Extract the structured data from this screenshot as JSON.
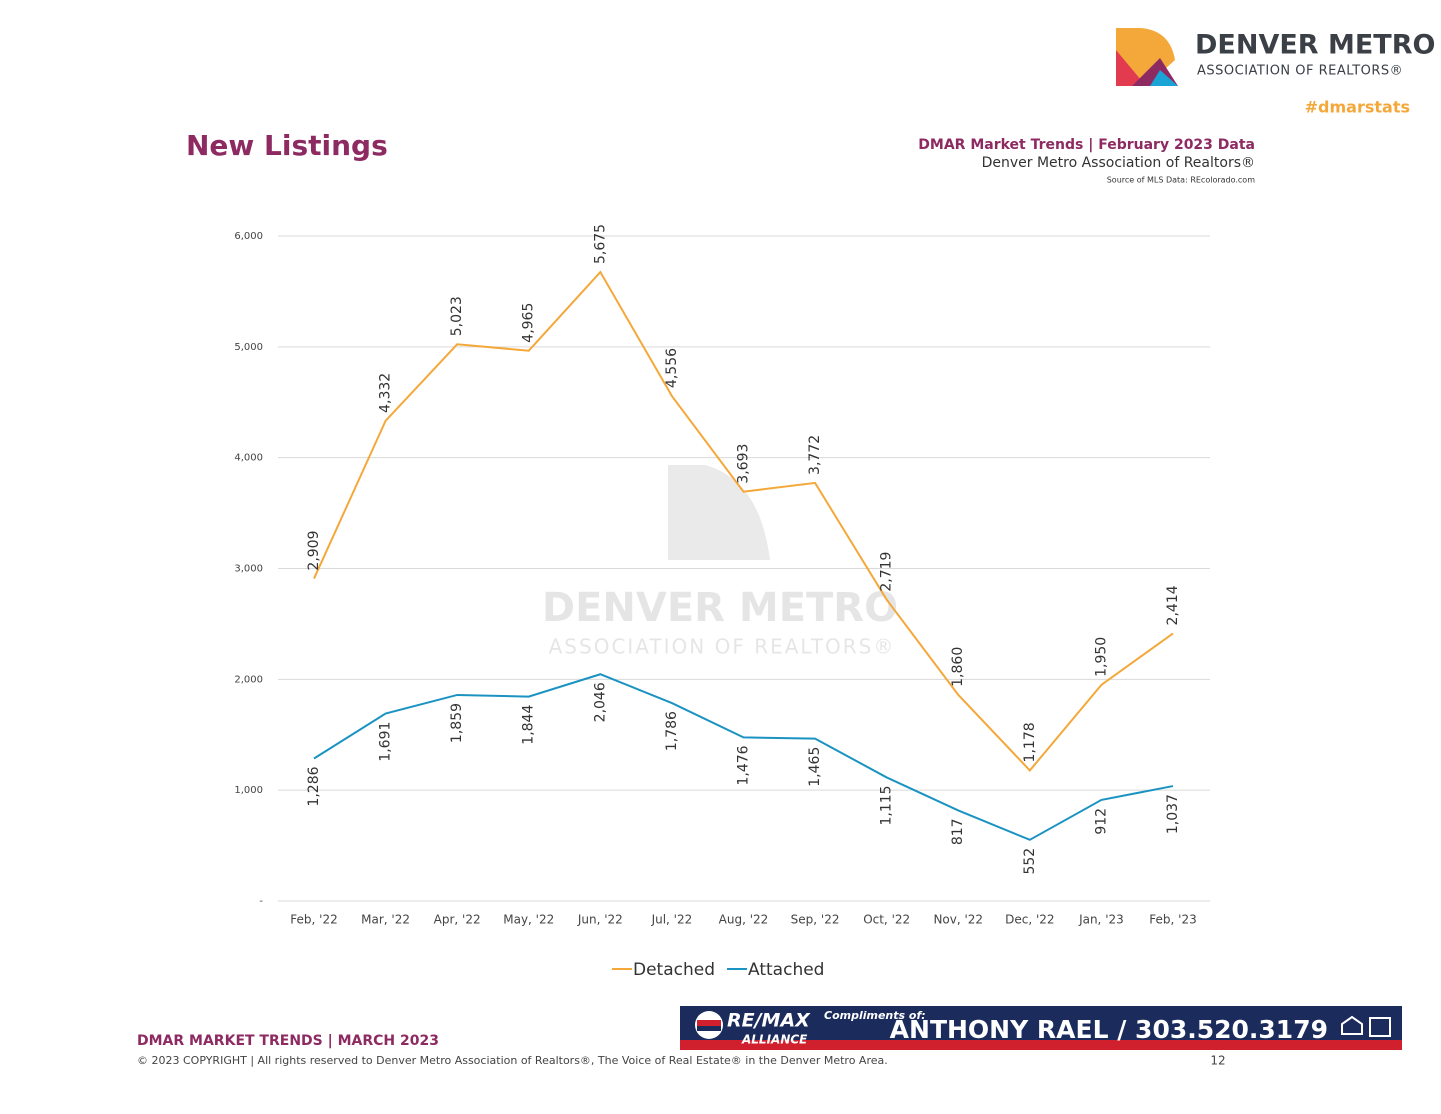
{
  "header": {
    "brand": "DENVER METRO",
    "brand_sub": "ASSOCIATION OF REALTORS®",
    "hashtag": "#dmarstats",
    "report": "DMAR Market Trends | February 2023 Data",
    "org": "Denver Metro Association of Realtors®",
    "source": "Source of MLS Data: REcolorado.com"
  },
  "watermark": {
    "line1": "DENVER METRO",
    "line2": "ASSOCIATION OF REALTORS®"
  },
  "chart_data": {
    "type": "line",
    "title": "New Listings",
    "categories": [
      "Feb, '22",
      "Mar, '22",
      "Apr, '22",
      "May, '22",
      "Jun, '22",
      "Jul, '22",
      "Aug, '22",
      "Sep, '22",
      "Oct, '22",
      "Nov, '22",
      "Dec, '22",
      "Jan, '23",
      "Feb, '23"
    ],
    "series": [
      {
        "name": "Detached",
        "color": "#f4a83a",
        "values": [
          2909,
          4332,
          5023,
          4965,
          5675,
          4556,
          3693,
          3772,
          2719,
          1860,
          1178,
          1950,
          2414
        ],
        "value_labels": [
          "2,909",
          "4,332",
          "5,023",
          "4,965",
          "5,675",
          "4,556",
          "3,693",
          "3,772",
          "2,719",
          "1,860",
          "1,178",
          "1,950",
          "2,414"
        ]
      },
      {
        "name": "Attached",
        "color": "#1b93c2",
        "values": [
          1286,
          1691,
          1859,
          1844,
          2046,
          1786,
          1476,
          1465,
          1115,
          817,
          552,
          912,
          1037
        ],
        "value_labels": [
          "1,286",
          "1,691",
          "1,859",
          "1,844",
          "2,046",
          "1,786",
          "1,476",
          "1,465",
          "1,115",
          "817",
          "552",
          "912",
          "1,037"
        ]
      }
    ],
    "ylim": [
      0,
      6000
    ],
    "yticks": [
      {
        "value": 0,
        "label": "-"
      },
      {
        "value": 1000,
        "label": "1,000"
      },
      {
        "value": 2000,
        "label": "2,000"
      },
      {
        "value": 3000,
        "label": "3,000"
      },
      {
        "value": 4000,
        "label": "4,000"
      },
      {
        "value": 5000,
        "label": "5,000"
      },
      {
        "value": 6000,
        "label": "6,000"
      }
    ],
    "grid": true,
    "legend": "bottom"
  },
  "footer": {
    "title": "DMAR MARKET TRENDS | MARCH 2023",
    "copyright": "© 2023 COPYRIGHT | All rights reserved to Denver Metro Association of Realtors®, The Voice of Real Estate® in the Denver Metro Area.",
    "page": "12"
  },
  "banner": {
    "brand": "RE/MAX",
    "brand_sub": "ALLIANCE",
    "compliments": "Compliments of:",
    "agent": "ANTHONY RAEL / 303.520.3179"
  }
}
